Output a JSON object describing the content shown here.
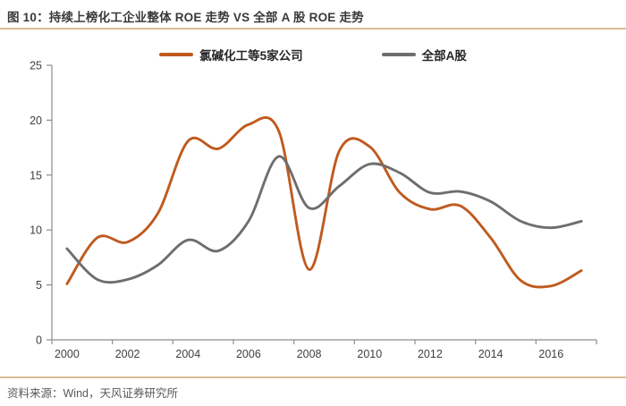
{
  "header": {
    "title": "图 10：持续上榜化工企业整体 ROE 走势 VS 全部 A 股 ROE 走势"
  },
  "footer": {
    "source": "资料来源：Wind，天风证券研究所"
  },
  "colors": {
    "accent_rule": "#d8bc94",
    "title_text": "#3b3838",
    "source_text": "#595959",
    "axis_line": "#8c8c8c",
    "tick_label": "#404040"
  },
  "chart_data": {
    "type": "line",
    "title": "",
    "xlabel": "",
    "ylabel": "",
    "x": [
      2000,
      2001,
      2002,
      2003,
      2004,
      2005,
      2006,
      2007,
      2008,
      2009,
      2010,
      2011,
      2012,
      2013,
      2014,
      2015,
      2016,
      2017
    ],
    "xtick_labels": [
      "2000",
      "2002",
      "2004",
      "2006",
      "2008",
      "2010",
      "2012",
      "2014",
      "2016"
    ],
    "yticks": [
      0,
      5,
      10,
      15,
      20,
      25
    ],
    "ylim": [
      0,
      25
    ],
    "grid": false,
    "line_smoothing": true,
    "legend_position": "top-center",
    "series": [
      {
        "name": "氯碱化工等5家公司",
        "color": "#c05a1e",
        "values": [
          5.1,
          9.3,
          8.9,
          11.5,
          18.1,
          17.4,
          19.6,
          19.0,
          6.4,
          17.2,
          17.6,
          13.4,
          11.9,
          12.2,
          9.3,
          5.4,
          4.9,
          6.3
        ]
      },
      {
        "name": "全部A股",
        "color": "#6e6e6e",
        "values": [
          8.3,
          5.5,
          5.5,
          6.8,
          9.1,
          8.1,
          10.8,
          16.7,
          12.0,
          14.0,
          16.0,
          15.2,
          13.4,
          13.5,
          12.6,
          10.8,
          10.2,
          10.8
        ]
      }
    ]
  }
}
